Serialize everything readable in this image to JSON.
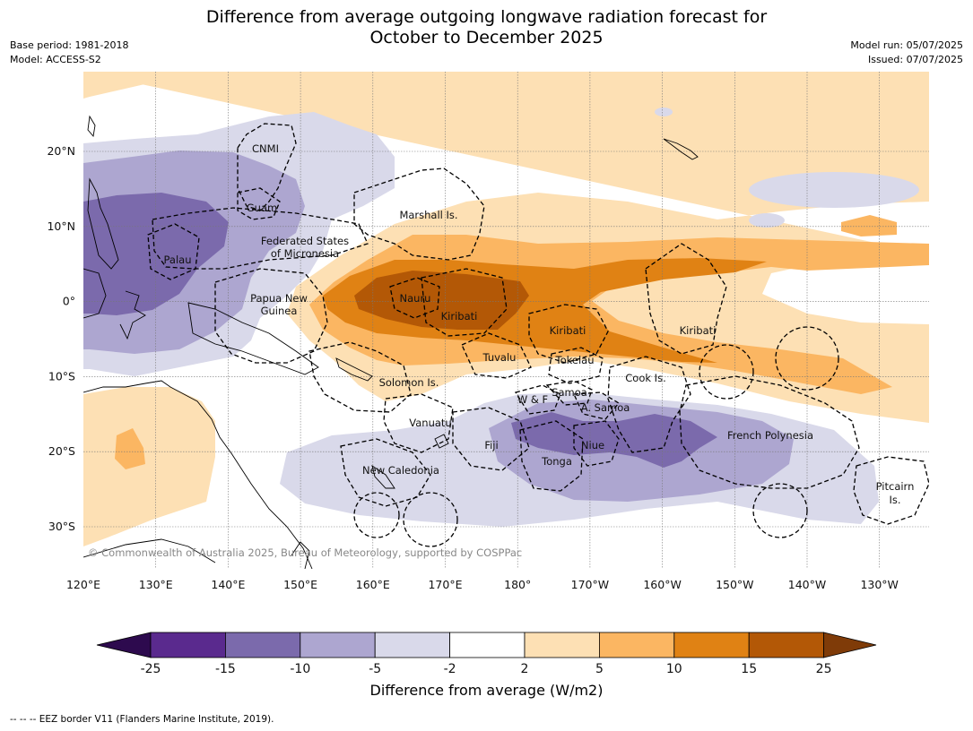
{
  "header": {
    "title_line1": "Difference from average outgoing longwave radiation forecast for",
    "title_line2": "October to December 2025",
    "base_period": "Base period: 1981-2018",
    "model": "Model: ACCESS-S2",
    "model_run": "Model run: 05/07/2025",
    "issued": "Issued: 07/07/2025"
  },
  "axes": {
    "lat_ticks": [
      "20°N",
      "10°N",
      "0°",
      "10°S",
      "20°S",
      "30°S"
    ],
    "lon_ticks": [
      "120°E",
      "130°E",
      "140°E",
      "150°E",
      "160°E",
      "170°E",
      "180°",
      "170°W",
      "160°W",
      "150°W",
      "140°W",
      "130°W"
    ]
  },
  "labels": {
    "cnmi": "CNMI",
    "guam": "Guam",
    "marshall": "Marshall Is.",
    "fsm_1": "Federated States",
    "fsm_2": "of Micronesia",
    "palau": "Palau",
    "png_1": "Papua New",
    "png_2": "Guinea",
    "nauru": "Nauru",
    "kiribati_w": "Kiribati",
    "kiribati_c": "Kiribati",
    "kiribati_e": "Kiribati",
    "tuvalu": "Tuvalu",
    "tokelau": "Tokelau",
    "cook": "Cook Is.",
    "solomon": "Solomon Is.",
    "wf": "W & F",
    "samoa": "Samoa",
    "asamoa": "A. Samoa",
    "vanuatu": "Vanuatu",
    "fiji": "Fiji",
    "niue": "Niue",
    "tonga": "Tonga",
    "frpoly": "French Polynesia",
    "newcal": "New Caledonia",
    "pitcairn_1": "Pitcairn",
    "pitcairn_2": "Is."
  },
  "copyright": "© Commonwealth of Australia 2025, Bureau of Meteorology, supported by COSPPac",
  "colorbar": {
    "ticks": [
      "-25",
      "-15",
      "-10",
      "-5",
      "-2",
      "2",
      "5",
      "10",
      "15",
      "25"
    ],
    "colors": {
      "under": "#2d0a4e",
      "b1": "#5a2a8e",
      "b2": "#7b6aac",
      "b3": "#ada6d0",
      "b4": "#d9d9ea",
      "b5": "#ffffff",
      "b6": "#fde0b4",
      "b7": "#fbb662",
      "b8": "#e08214",
      "b9": "#b35806",
      "over": "#7f3b08"
    },
    "label": "Difference from average (W/m2)"
  },
  "footer": "--  --  -- EEZ border V11 (Flanders Marine Institute, 2019)."
}
